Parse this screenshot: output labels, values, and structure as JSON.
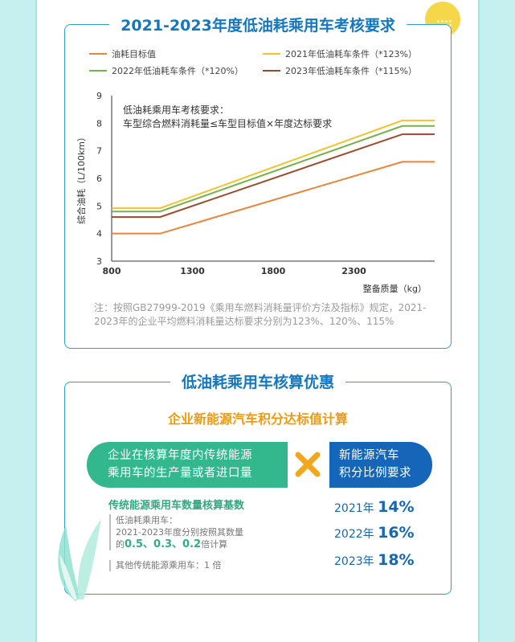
{
  "section1": {
    "title": "2021-2023年度低油耗乘用车考核要求",
    "note": "注：按照GB27999-2019《乘用车燃料消耗量评价方法及指标》规定，2021-2023年的企业平均燃料消耗量达标要求分别为123%、120%、115%"
  },
  "chart_data": {
    "type": "line",
    "title": "",
    "xlabel": "整备质量（kg）",
    "ylabel": "综合油耗（L/100km）",
    "xlim": [
      800,
      2800
    ],
    "ylim": [
      3,
      9
    ],
    "x_ticks": [
      800,
      1300,
      1800,
      2300
    ],
    "y_ticks": [
      3,
      4,
      5,
      6,
      7,
      8,
      9
    ],
    "grid": false,
    "legend_position": "top",
    "annotation": [
      "低油耗乘用车考核要求：",
      "车型综合燃料消耗量≤车型目标值×年度达标要求"
    ],
    "series": [
      {
        "name": "油耗目标值",
        "color": "#e8853a",
        "x": [
          800,
          1100,
          2600,
          2800
        ],
        "y": [
          4.0,
          4.0,
          6.6,
          6.6
        ]
      },
      {
        "name": "2021年低油耗车条件（*123%）",
        "color": "#f3c230",
        "x": [
          800,
          1100,
          2600,
          2800
        ],
        "y": [
          4.92,
          4.92,
          8.1,
          8.1
        ]
      },
      {
        "name": "2022年低油耗车条件（*120%）",
        "color": "#78b04c",
        "x": [
          800,
          1100,
          2600,
          2800
        ],
        "y": [
          4.8,
          4.8,
          7.9,
          7.9
        ]
      },
      {
        "name": "2023年低油耗车条件（*115%）",
        "color": "#9b4a2a",
        "x": [
          800,
          1100,
          2600,
          2800
        ],
        "y": [
          4.6,
          4.6,
          7.6,
          7.6
        ]
      }
    ]
  },
  "section2": {
    "title": "低油耗乘用车核算优惠",
    "subtitle": "企业新能源汽车积分达标值计算",
    "left_pill": [
      "企业在核算年度内传统能源",
      "乘用车的生产量或者进口量"
    ],
    "right_pill": [
      "新能源汽车",
      "积分比例要求"
    ],
    "basis_title": "传统能源乘用车数量核算基数",
    "rule1_line1": "低油耗乘用车：",
    "rule1_line2": "2021-2023年度分别按照其数量",
    "rule1_prefix": "的",
    "rule1_factors": "0.5、0.3、0.2",
    "rule1_suffix": "倍计算",
    "rule2": "其他传统能源乘用车：1 倍",
    "years": [
      {
        "year": "2021年",
        "pct": "14%"
      },
      {
        "year": "2022年",
        "pct": "16%"
      },
      {
        "year": "2023年",
        "pct": "18%"
      }
    ],
    "colors": {
      "green": "#33b88d",
      "blue": "#1566b9",
      "orange": "#ef9a0e"
    }
  }
}
